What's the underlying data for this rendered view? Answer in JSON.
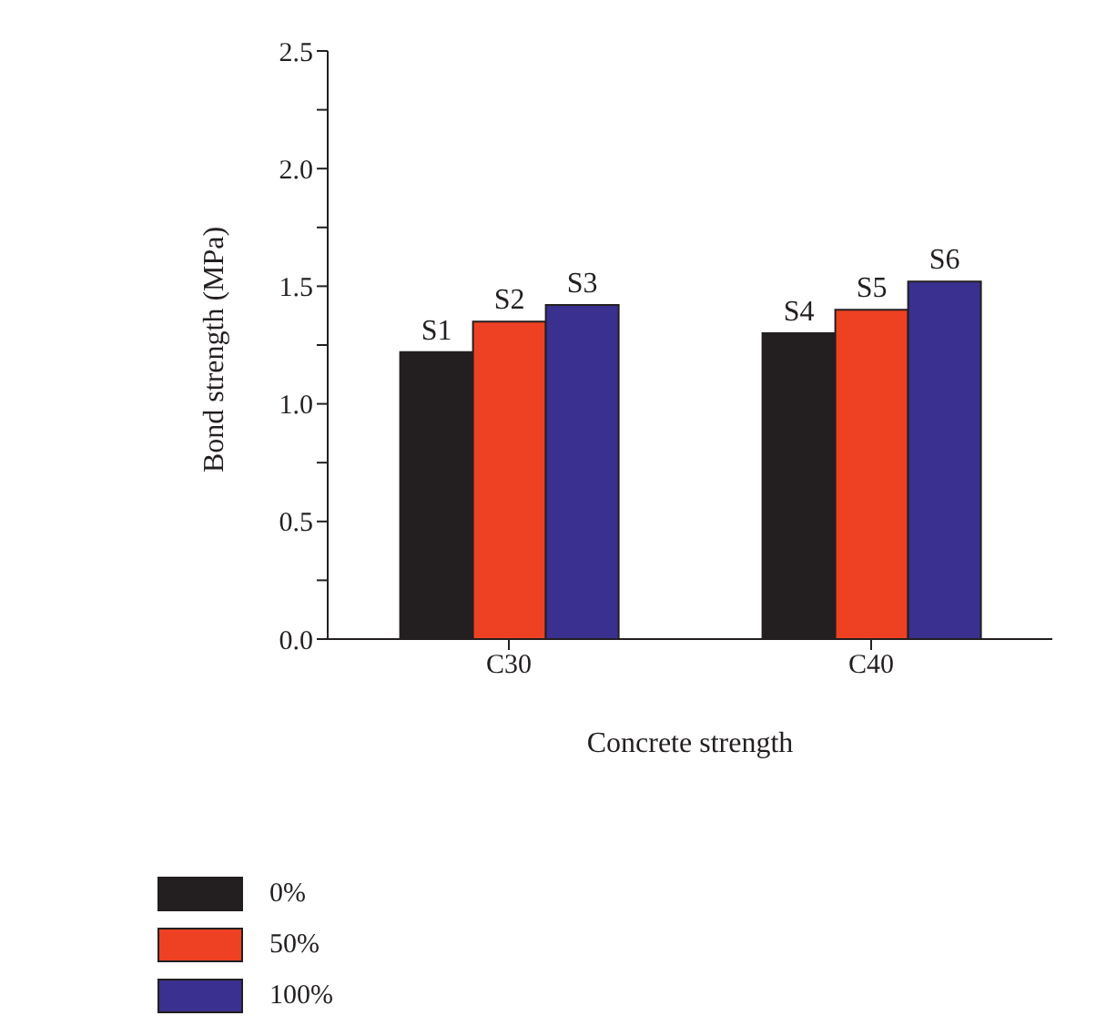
{
  "chart_data": {
    "type": "bar",
    "xlabel": "Concrete strength",
    "ylabel": "Bond strength (MPa)",
    "categories": [
      "C30",
      "C40"
    ],
    "series": [
      {
        "name": "0%",
        "color": "#231f20",
        "values": [
          1.22,
          1.3
        ]
      },
      {
        "name": "50%",
        "color": "#ee4123",
        "values": [
          1.35,
          1.4
        ]
      },
      {
        "name": "100%",
        "color": "#393090",
        "values": [
          1.42,
          1.52
        ]
      }
    ],
    "ylim": [
      0,
      2.5
    ],
    "yticks": [
      {
        "value": 0,
        "label": "0.0"
      },
      {
        "value": 0.25,
        "label": null
      },
      0.5,
      {
        "value": 0.75,
        "label": null
      },
      {
        "value": 1,
        "label": "1.0"
      },
      {
        "value": 1.25,
        "label": null
      },
      1.5,
      {
        "value": 1.75,
        "label": null
      },
      {
        "value": 2,
        "label": "2.0"
      },
      {
        "value": 2.25,
        "label": null
      },
      2.5
    ],
    "annotations": [
      "S1",
      "S2",
      "S3",
      "S4",
      "S5",
      "S6"
    ],
    "grid": false,
    "legend": "bottom left"
  }
}
